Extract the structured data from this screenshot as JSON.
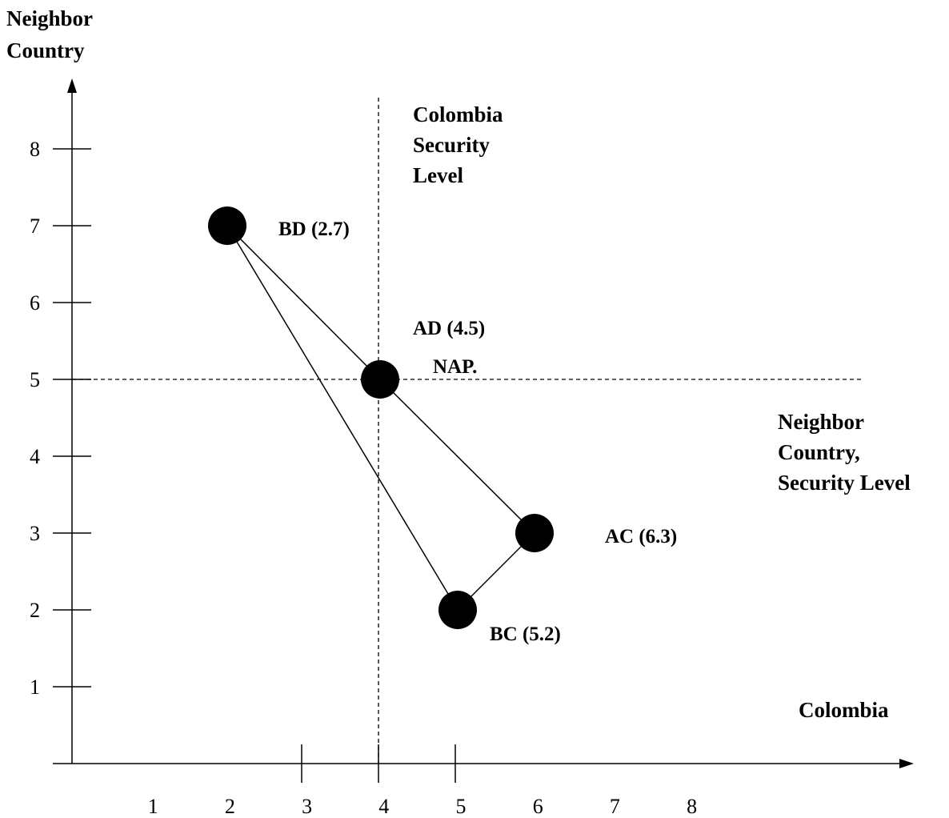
{
  "chart_data": {
    "type": "scatter",
    "title": "",
    "ylabel_lines": [
      "Neighbor",
      "Country"
    ],
    "xlabel": "Colombia",
    "x_ticks": [
      1,
      2,
      3,
      4,
      5,
      6,
      7,
      8
    ],
    "y_ticks": [
      1,
      2,
      3,
      4,
      5,
      6,
      7,
      8
    ],
    "reference_lines": {
      "vertical_x": 4,
      "vertical_label_lines": [
        "Colombia",
        "Security",
        "Level"
      ],
      "horizontal_y": 5,
      "horizontal_label_lines": [
        "Neighbor",
        "Country,",
        "Security Level"
      ]
    },
    "points": [
      {
        "label": "BD (2.7)",
        "x": 2,
        "y": 7
      },
      {
        "label": "AD (4.5)",
        "x": 4,
        "y": 5
      },
      {
        "label": "AC (6.3)",
        "x": 6,
        "y": 3
      },
      {
        "label": "BC (5.2)",
        "x": 5,
        "y": 2
      }
    ],
    "center_label": "NAP.",
    "connections": [
      [
        "BD (2.7)",
        "AD (4.5)"
      ],
      [
        "AD (4.5)",
        "AC (6.3)"
      ],
      [
        "AC (6.3)",
        "BC (5.2)"
      ],
      [
        "BC (5.2)",
        "BD (2.7)"
      ]
    ],
    "grid": false,
    "legend": "none",
    "marker_color": "#000000"
  }
}
